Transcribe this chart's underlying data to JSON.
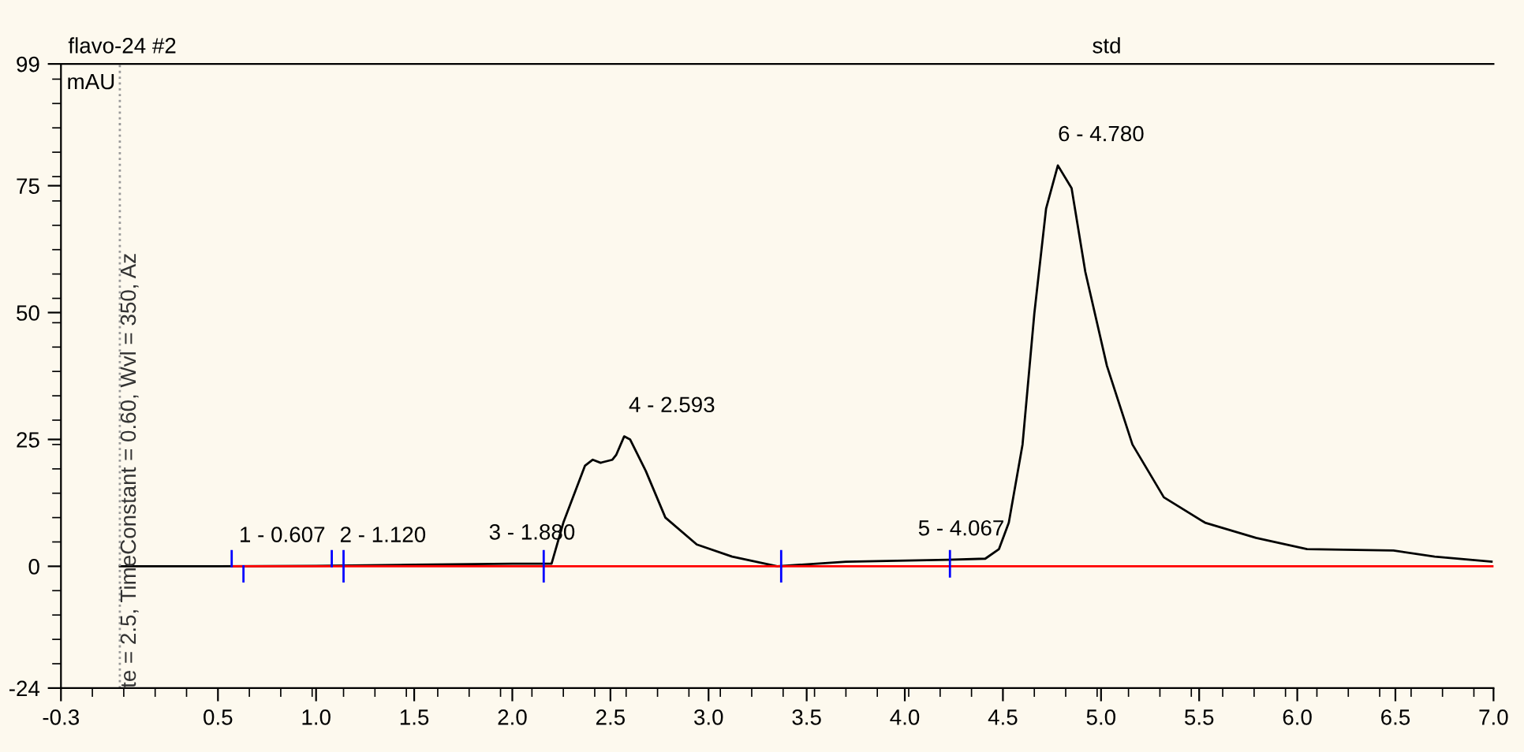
{
  "chart_data": {
    "type": "line",
    "title": "flavo-24 #2",
    "subtitle": "std",
    "ylabel": "mAU",
    "xlim": [
      -0.3,
      7.0
    ],
    "xticks": [
      -0.3,
      0.5,
      {
        "value": 1,
        "label": "1.0"
      },
      1.5,
      {
        "value": 2,
        "label": "2.0"
      },
      2.5,
      {
        "value": 3,
        "label": "3.0"
      },
      3.5,
      {
        "value": 4,
        "label": "4.0"
      },
      4.5,
      {
        "value": 5,
        "label": "5.0"
      },
      5.5,
      {
        "value": 6,
        "label": "6.0"
      },
      6.5,
      {
        "value": 7,
        "label": "7.0"
      }
    ],
    "ylim": [
      -24,
      99
    ],
    "yticks": [
      -24,
      0,
      25,
      50,
      75,
      99
    ],
    "grid": false,
    "legend": false,
    "series": [
      {
        "color": "#000000",
        "x": [
          0.0,
          0.5,
          1.0,
          1.5,
          2.0,
          2.2,
          2.26,
          2.37,
          2.41,
          2.45,
          2.51,
          2.53,
          2.57,
          2.6,
          2.68,
          2.78,
          2.94,
          3.12,
          3.35,
          3.7,
          4.22,
          4.41,
          4.48,
          4.53,
          4.6,
          4.66,
          4.72,
          4.78,
          4.85,
          4.92,
          5.03,
          5.16,
          5.32,
          5.53,
          5.79,
          6.05,
          6.49,
          6.7,
          6.99
        ],
        "values": [
          0,
          0,
          0.1,
          0.3,
          0.5,
          0.5,
          8.6,
          19.8,
          21,
          20.4,
          21,
          22,
          25.6,
          25,
          18.8,
          9.6,
          4.3,
          1.9,
          0,
          0.9,
          1.3,
          1.5,
          3.4,
          8.6,
          24,
          49.8,
          70.5,
          79,
          74.5,
          58,
          39.5,
          24,
          13.6,
          8.6,
          5.6,
          3.4,
          3.1,
          1.9,
          0.9
        ]
      },
      {
        "color": "#ff0000",
        "x": [
          0.57,
          7.0
        ],
        "values": [
          0,
          0
        ]
      },
      {
        "color": "#0000ff",
        "x": [
          0.57,
          0.57,
          0.6,
          0.63,
          0.63,
          0.9,
          1.08,
          1.08,
          1.11,
          1.14,
          1.14,
          1.6,
          2.16,
          2.16,
          2.7,
          3.37,
          3.37,
          3.8,
          4.23,
          4.23
        ],
        "values": [
          0,
          3,
          null,
          -3,
          0,
          null,
          0,
          3,
          null,
          -3,
          3,
          null,
          -3,
          3,
          null,
          -3,
          3,
          null,
          -2,
          3
        ]
      }
    ],
    "ref_lines": [
      {
        "axis": "x",
        "value": 0,
        "color": "#999999",
        "line_style": "dotted"
      }
    ],
    "annotations": [
      "te = 2.5, TimeConstant = 0.60, Wvl = 350, Az",
      {
        "text": "1 - 0.607",
        "x": 0.607,
        "y": 0
      },
      {
        "text": "2 - 1.120",
        "x": 1.12,
        "y": 0
      },
      {
        "text": "3 - 1.880",
        "x": 1.88,
        "y": 0.5
      },
      {
        "text": "4 - 2.593",
        "x": 2.593,
        "y": 25.6
      },
      {
        "text": "5 - 4.067",
        "x": 4.067,
        "y": 1.3
      },
      {
        "text": "6 - 4.780",
        "x": 4.78,
        "y": 79
      }
    ]
  }
}
